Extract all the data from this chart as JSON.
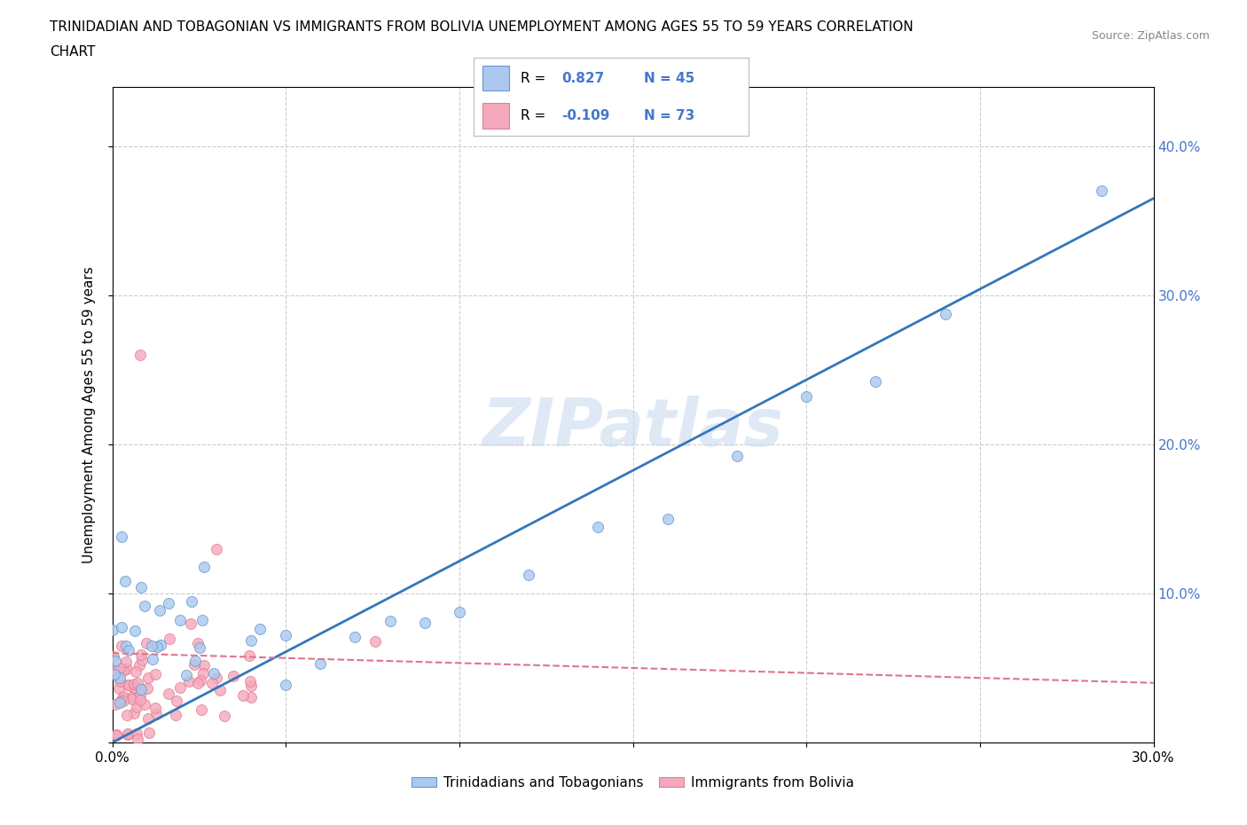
{
  "title_line1": "TRINIDADIAN AND TOBAGONIAN VS IMMIGRANTS FROM BOLIVIA UNEMPLOYMENT AMONG AGES 55 TO 59 YEARS CORRELATION",
  "title_line2": "CHART",
  "source_text": "Source: ZipAtlas.com",
  "ylabel": "Unemployment Among Ages 55 to 59 years",
  "xlim": [
    0.0,
    0.3
  ],
  "ylim": [
    0.0,
    0.44
  ],
  "r_blue": 0.827,
  "n_blue": 45,
  "r_pink": -0.109,
  "n_pink": 73,
  "blue_color": "#aac8f0",
  "pink_color": "#f5a8bc",
  "blue_edge_color": "#6699cc",
  "pink_edge_color": "#e08090",
  "blue_line_color": "#3377bb",
  "pink_line_color": "#dd7788",
  "right_tick_color": "#4477cc",
  "watermark": "ZIPatlas",
  "legend_blue_label": "Trinidadians and Tobagonians",
  "legend_pink_label": "Immigrants from Bolivia",
  "blue_line_x0": 0.0,
  "blue_line_y0": 0.0,
  "blue_line_x1": 0.3,
  "blue_line_y1": 0.365,
  "pink_line_x0": 0.0,
  "pink_line_y0": 0.06,
  "pink_line_x1": 0.3,
  "pink_line_y1": 0.04,
  "grid_color": "#cccccc",
  "bg_color": "#ffffff"
}
